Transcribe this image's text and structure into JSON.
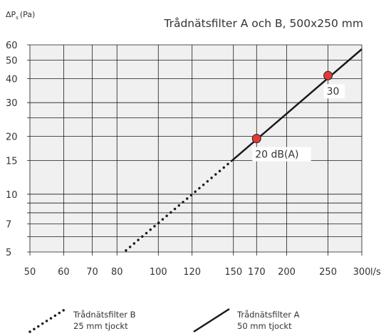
{
  "chart_data": {
    "type": "line",
    "title": "Trådnätsfilter A och B, 500x250 mm",
    "ylabel_main": "ΔP",
    "ylabel_sub": "s",
    "ylabel_unit": "(Pa)",
    "xunit": "l/s",
    "xscale": "log",
    "yscale": "log",
    "xlim": [
      50,
      300
    ],
    "ylim": [
      5,
      60
    ],
    "x_ticks": [
      50,
      60,
      70,
      80,
      100,
      120,
      150,
      170,
      200,
      250,
      300
    ],
    "x_tick_labels": [
      "50",
      "60",
      "70",
      "80",
      "100",
      "120",
      "150",
      "170",
      "200",
      "250",
      "300"
    ],
    "y_ticks": [
      5,
      7,
      10,
      15,
      20,
      30,
      40,
      50,
      60
    ],
    "y_tick_labels": [
      "5",
      "7",
      "10",
      "15",
      "20",
      "30",
      "40",
      "50",
      "60"
    ],
    "y_grid_extra": [
      6,
      8,
      9,
      25
    ],
    "series": [
      {
        "name": "Trådnätsfilter B",
        "note": "25 mm tjockt",
        "style": "dotted",
        "x": [
          84,
          148
        ],
        "y": [
          5.1,
          14.8
        ]
      },
      {
        "name": "Trådnätsfilter A",
        "note": "50 mm tjockt",
        "style": "solid",
        "x": [
          148,
          300
        ],
        "y": [
          14.8,
          57
        ]
      }
    ],
    "points": [
      {
        "x": 170,
        "y": 19.5,
        "label": "20 dB(A)"
      },
      {
        "x": 250,
        "y": 41.5,
        "label": "30"
      }
    ],
    "grid": true,
    "legend": "bottom",
    "colors": {
      "line": "#1a1a1a",
      "point": "#e53935",
      "plot_bg": "#f0f0f0",
      "grid": "#1a1a1a"
    }
  }
}
